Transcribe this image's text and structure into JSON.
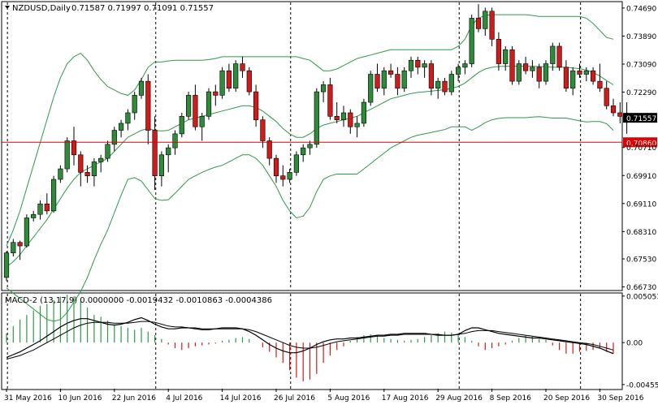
{
  "header": {
    "symbol": "NZDUSD,Daily",
    "ohlc": "0.71587 0.71997 0.71091 0.71557"
  },
  "indicator": {
    "label": "MACD-2 (13,17,9) 0.0000000 -0.0019432 -0.0010863 -0.0004386"
  },
  "colors": {
    "bull": "#2e8b3a",
    "bear": "#d11a1a",
    "band": "#2e9a4a",
    "grid": "#000000",
    "price_line": "#e00000",
    "current_price_bg": "#000000",
    "macd_pos": "#2e9a4a",
    "macd_neg": "#d11a1a"
  },
  "chart_data": [
    {
      "type": "candlestick",
      "yaxis_ticks": [
        "0.74690",
        "0.73890",
        "0.73090",
        "0.72290",
        "0.70710",
        "0.69910",
        "0.69110",
        "0.68310",
        "0.67530",
        "0.66730"
      ],
      "ylim": [
        0.6665,
        0.7485
      ],
      "current_price": "0.71557",
      "hline_price": "0.70860",
      "x_ticks": [
        "31 May 2016",
        "10 Jun 2016",
        "22 Jun 2016",
        "4 Jul 2016",
        "14 Jul 2016",
        "26 Jul 2016",
        "5 Aug 2016",
        "17 Aug 2016",
        "29 Aug 2016",
        "8 Sep 2016",
        "20 Sep 2016",
        "30 Sep 2016"
      ],
      "x_tick_index": [
        0,
        8,
        16,
        24,
        32,
        40,
        48,
        56,
        64,
        72,
        80,
        88
      ],
      "vlines_index": [
        1,
        23,
        43,
        68,
        86
      ],
      "candles": [
        [
          0.67,
          0.6775,
          0.669,
          0.677
        ],
        [
          0.677,
          0.681,
          0.676,
          0.68
        ],
        [
          0.68,
          0.6805,
          0.675,
          0.679
        ],
        [
          0.679,
          0.688,
          0.6785,
          0.687
        ],
        [
          0.687,
          0.689,
          0.686,
          0.688
        ],
        [
          0.688,
          0.692,
          0.6865,
          0.691
        ],
        [
          0.691,
          0.694,
          0.688,
          0.689
        ],
        [
          0.689,
          0.699,
          0.6885,
          0.698
        ],
        [
          0.698,
          0.702,
          0.697,
          0.701
        ],
        [
          0.701,
          0.71,
          0.7,
          0.709
        ],
        [
          0.709,
          0.713,
          0.702,
          0.705
        ],
        [
          0.705,
          0.706,
          0.696,
          0.7
        ],
        [
          0.7,
          0.702,
          0.697,
          0.699
        ],
        [
          0.699,
          0.704,
          0.696,
          0.703
        ],
        [
          0.703,
          0.705,
          0.7,
          0.704
        ],
        [
          0.704,
          0.709,
          0.703,
          0.708
        ],
        [
          0.708,
          0.713,
          0.706,
          0.712
        ],
        [
          0.712,
          0.715,
          0.71,
          0.714
        ],
        [
          0.714,
          0.718,
          0.712,
          0.717
        ],
        [
          0.717,
          0.723,
          0.715,
          0.722
        ],
        [
          0.722,
          0.727,
          0.721,
          0.726
        ],
        [
          0.726,
          0.728,
          0.708,
          0.712
        ],
        [
          0.712,
          0.716,
          0.695,
          0.699
        ],
        [
          0.699,
          0.706,
          0.696,
          0.705
        ],
        [
          0.705,
          0.708,
          0.7,
          0.707
        ],
        [
          0.707,
          0.712,
          0.705,
          0.711
        ],
        [
          0.711,
          0.717,
          0.71,
          0.716
        ],
        [
          0.716,
          0.723,
          0.715,
          0.722
        ],
        [
          0.722,
          0.725,
          0.712,
          0.713
        ],
        [
          0.713,
          0.717,
          0.709,
          0.716
        ],
        [
          0.716,
          0.724,
          0.715,
          0.723
        ],
        [
          0.723,
          0.725,
          0.719,
          0.722
        ],
        [
          0.722,
          0.73,
          0.721,
          0.729
        ],
        [
          0.729,
          0.731,
          0.723,
          0.724
        ],
        [
          0.724,
          0.732,
          0.723,
          0.731
        ],
        [
          0.731,
          0.733,
          0.727,
          0.729
        ],
        [
          0.729,
          0.73,
          0.722,
          0.723
        ],
        [
          0.723,
          0.725,
          0.713,
          0.715
        ],
        [
          0.715,
          0.716,
          0.707,
          0.709
        ],
        [
          0.709,
          0.71,
          0.702,
          0.704
        ],
        [
          0.704,
          0.705,
          0.697,
          0.699
        ],
        [
          0.699,
          0.702,
          0.696,
          0.698
        ],
        [
          0.698,
          0.701,
          0.697,
          0.7
        ],
        [
          0.7,
          0.706,
          0.699,
          0.705
        ],
        [
          0.705,
          0.708,
          0.703,
          0.707
        ],
        [
          0.707,
          0.709,
          0.705,
          0.708
        ],
        [
          0.708,
          0.724,
          0.707,
          0.723
        ],
        [
          0.723,
          0.726,
          0.72,
          0.725
        ],
        [
          0.725,
          0.727,
          0.715,
          0.716
        ],
        [
          0.716,
          0.72,
          0.714,
          0.715
        ],
        [
          0.715,
          0.719,
          0.713,
          0.717
        ],
        [
          0.717,
          0.718,
          0.711,
          0.713
        ],
        [
          0.713,
          0.716,
          0.71,
          0.714
        ],
        [
          0.714,
          0.721,
          0.713,
          0.72
        ],
        [
          0.72,
          0.729,
          0.719,
          0.728
        ],
        [
          0.728,
          0.731,
          0.723,
          0.724
        ],
        [
          0.724,
          0.73,
          0.722,
          0.729
        ],
        [
          0.729,
          0.731,
          0.727,
          0.728
        ],
        [
          0.728,
          0.73,
          0.722,
          0.724
        ],
        [
          0.724,
          0.73,
          0.723,
          0.729
        ],
        [
          0.729,
          0.733,
          0.727,
          0.732
        ],
        [
          0.732,
          0.733,
          0.728,
          0.73
        ],
        [
          0.73,
          0.732,
          0.727,
          0.731
        ],
        [
          0.731,
          0.732,
          0.722,
          0.724
        ],
        [
          0.724,
          0.727,
          0.721,
          0.726
        ],
        [
          0.726,
          0.727,
          0.722,
          0.723
        ],
        [
          0.723,
          0.729,
          0.722,
          0.728
        ],
        [
          0.728,
          0.731,
          0.726,
          0.73
        ],
        [
          0.73,
          0.732,
          0.728,
          0.731
        ],
        [
          0.731,
          0.745,
          0.73,
          0.744
        ],
        [
          0.744,
          0.748,
          0.74,
          0.741
        ],
        [
          0.741,
          0.747,
          0.739,
          0.746
        ],
        [
          0.746,
          0.747,
          0.736,
          0.738
        ],
        [
          0.738,
          0.74,
          0.729,
          0.731
        ],
        [
          0.731,
          0.736,
          0.729,
          0.735
        ],
        [
          0.735,
          0.736,
          0.725,
          0.726
        ],
        [
          0.726,
          0.732,
          0.725,
          0.731
        ],
        [
          0.731,
          0.733,
          0.728,
          0.729
        ],
        [
          0.729,
          0.732,
          0.727,
          0.73
        ],
        [
          0.73,
          0.731,
          0.724,
          0.726
        ],
        [
          0.726,
          0.732,
          0.725,
          0.731
        ],
        [
          0.731,
          0.737,
          0.729,
          0.736
        ],
        [
          0.736,
          0.737,
          0.729,
          0.73
        ],
        [
          0.73,
          0.732,
          0.723,
          0.724
        ],
        [
          0.724,
          0.73,
          0.722,
          0.729
        ],
        [
          0.729,
          0.731,
          0.727,
          0.728
        ],
        [
          0.728,
          0.73,
          0.726,
          0.729
        ],
        [
          0.729,
          0.73,
          0.725,
          0.726
        ],
        [
          0.726,
          0.731,
          0.723,
          0.724
        ],
        [
          0.724,
          0.726,
          0.718,
          0.719
        ],
        [
          0.719,
          0.721,
          0.716,
          0.717
        ],
        [
          0.717,
          0.72,
          0.714,
          0.716
        ],
        [
          0.716,
          0.72,
          0.711,
          0.7156
        ]
      ],
      "bb_upper": [
        0.679,
        0.6835,
        0.689,
        0.6955,
        0.702,
        0.7085,
        0.715,
        0.7215,
        0.727,
        0.731,
        0.733,
        0.734,
        0.732,
        0.729,
        0.7265,
        0.7245,
        0.7235,
        0.7225,
        0.722,
        0.7235,
        0.7265,
        0.73,
        0.7315,
        0.7315,
        0.7318,
        0.732,
        0.732,
        0.732,
        0.732,
        0.732,
        0.7322,
        0.7325,
        0.733,
        0.733,
        0.733,
        0.733,
        0.733,
        0.733,
        0.733,
        0.733,
        0.733,
        0.733,
        0.733,
        0.733,
        0.7325,
        0.732,
        0.7305,
        0.729,
        0.729,
        0.7295,
        0.7305,
        0.7315,
        0.7325,
        0.733,
        0.7335,
        0.734,
        0.7345,
        0.735,
        0.735,
        0.735,
        0.735,
        0.735,
        0.735,
        0.735,
        0.735,
        0.735,
        0.735,
        0.736,
        0.738,
        0.742,
        0.744,
        0.7448,
        0.745,
        0.745,
        0.745,
        0.745,
        0.745,
        0.745,
        0.7448,
        0.7445,
        0.7445,
        0.7445,
        0.7445,
        0.7445,
        0.7445,
        0.7445,
        0.744,
        0.7425,
        0.7405,
        0.7385,
        0.738
      ],
      "bb_middle": [
        0.673,
        0.6745,
        0.6765,
        0.679,
        0.6815,
        0.684,
        0.6865,
        0.6895,
        0.6925,
        0.6955,
        0.698,
        0.7,
        0.701,
        0.702,
        0.703,
        0.704,
        0.706,
        0.708,
        0.71,
        0.711,
        0.712,
        0.7125,
        0.712,
        0.7118,
        0.712,
        0.713,
        0.714,
        0.715,
        0.7155,
        0.716,
        0.7165,
        0.717,
        0.7175,
        0.718,
        0.7185,
        0.719,
        0.719,
        0.7185,
        0.7175,
        0.716,
        0.7145,
        0.7125,
        0.711,
        0.71,
        0.71,
        0.711,
        0.7125,
        0.7135,
        0.714,
        0.7145,
        0.715,
        0.7155,
        0.716,
        0.717,
        0.718,
        0.719,
        0.72,
        0.721,
        0.7215,
        0.722,
        0.7225,
        0.7228,
        0.723,
        0.7232,
        0.7234,
        0.7236,
        0.724,
        0.7245,
        0.7255,
        0.727,
        0.7285,
        0.7295,
        0.73,
        0.7302,
        0.7303,
        0.7303,
        0.7303,
        0.7303,
        0.7303,
        0.7302,
        0.7301,
        0.73,
        0.73,
        0.73,
        0.7298,
        0.7296,
        0.7292,
        0.7285,
        0.7275,
        0.7262,
        0.725
      ],
      "bb_lower": [
        0.667,
        0.6655,
        0.664,
        0.6625,
        0.661,
        0.6595,
        0.658,
        0.6575,
        0.658,
        0.66,
        0.663,
        0.666,
        0.67,
        0.675,
        0.6795,
        0.6835,
        0.6885,
        0.6935,
        0.698,
        0.6985,
        0.6975,
        0.695,
        0.6925,
        0.692,
        0.6922,
        0.694,
        0.696,
        0.698,
        0.699,
        0.7,
        0.7008,
        0.7015,
        0.702,
        0.703,
        0.704,
        0.705,
        0.705,
        0.704,
        0.702,
        0.699,
        0.696,
        0.692,
        0.689,
        0.687,
        0.6875,
        0.69,
        0.6945,
        0.698,
        0.699,
        0.6995,
        0.6995,
        0.6995,
        0.6995,
        0.701,
        0.7025,
        0.704,
        0.7055,
        0.707,
        0.708,
        0.709,
        0.71,
        0.7106,
        0.711,
        0.7114,
        0.7118,
        0.7122,
        0.713,
        0.713,
        0.713,
        0.712,
        0.713,
        0.7142,
        0.715,
        0.7154,
        0.7156,
        0.7156,
        0.7156,
        0.7156,
        0.7158,
        0.7159,
        0.7157,
        0.7155,
        0.7155,
        0.7155,
        0.7151,
        0.7147,
        0.7144,
        0.7145,
        0.7145,
        0.7139,
        0.712
      ]
    },
    {
      "type": "macd",
      "yaxis_ticks": [
        "0.005053",
        "0.00",
        "-0.004551"
      ],
      "ylim": [
        -0.005,
        0.0053
      ],
      "histogram": [
        0.001,
        0.0018,
        0.0025,
        0.003,
        0.0035,
        0.004,
        0.0042,
        0.0046,
        0.005,
        0.0052,
        0.005,
        0.0045,
        0.0038,
        0.003,
        0.0028,
        0.0024,
        0.002,
        0.0018,
        0.0016,
        0.0014,
        0.0016,
        0.0012,
        0.0008,
        0.0004,
        -0.0002,
        -0.0006,
        -0.0008,
        -0.0006,
        -0.0004,
        -0.0003,
        -0.0002,
        -0.0001,
        0.0002,
        0.0003,
        0.0005,
        0.0006,
        0.0004,
        0.0,
        -0.0005,
        -0.001,
        -0.0016,
        -0.0022,
        -0.003,
        -0.0038,
        -0.0042,
        -0.004,
        -0.0034,
        -0.0022,
        -0.0014,
        -0.0008,
        -0.0004,
        0.0002,
        0.0006,
        0.0008,
        0.0009,
        0.0008,
        0.0005,
        0.0004,
        0.0003,
        0.0002,
        0.0003,
        0.0004,
        0.0006,
        0.0008,
        0.001,
        0.0012,
        0.0011,
        0.001,
        0.0006,
        0.0002,
        -0.0004,
        -0.0008,
        -0.0006,
        -0.0004,
        -0.0002,
        0.0002,
        0.0005,
        0.0008,
        0.0007,
        0.0004,
        0.0003,
        -0.0003,
        -0.0008,
        -0.0012,
        -0.0012,
        -0.001,
        -0.0009,
        -0.0008,
        -0.0006,
        -0.001,
        -0.0012
      ],
      "macd_line": [
        -0.0016,
        -0.0013,
        -0.001,
        -0.0006,
        -0.0002,
        0.0002,
        0.0007,
        0.0012,
        0.0017,
        0.0021,
        0.0024,
        0.0026,
        0.0026,
        0.0024,
        0.0022,
        0.002,
        0.0019,
        0.002,
        0.0022,
        0.0025,
        0.0027,
        0.0024,
        0.002,
        0.0017,
        0.0015,
        0.0015,
        0.0016,
        0.0016,
        0.0015,
        0.0014,
        0.0014,
        0.0015,
        0.0016,
        0.0016,
        0.0016,
        0.0015,
        0.0012,
        0.0008,
        0.0003,
        -0.0002,
        -0.0006,
        -0.0009,
        -0.0011,
        -0.0011,
        -0.0009,
        -0.0006,
        -0.0002,
        0.0001,
        0.0003,
        0.0004,
        0.0004,
        0.0005,
        0.0005,
        0.0006,
        0.0007,
        0.0008,
        0.0008,
        0.0009,
        0.0009,
        0.001,
        0.001,
        0.001,
        0.001,
        0.0009,
        0.0008,
        0.0008,
        0.0008,
        0.0009,
        0.0013,
        0.0016,
        0.0016,
        0.0014,
        0.0012,
        0.001,
        0.0009,
        0.0008,
        0.0007,
        0.0006,
        0.0005,
        0.0005,
        0.0004,
        0.0003,
        0.0002,
        0.0001,
        0.0,
        -0.0001,
        -0.0002,
        -0.0004,
        -0.0006,
        -0.0009,
        -0.0012
      ],
      "signal_line": [
        -0.0018,
        -0.0016,
        -0.0014,
        -0.0011,
        -0.0008,
        -0.0004,
        0.0,
        0.0004,
        0.0008,
        0.0012,
        0.0016,
        0.0019,
        0.0021,
        0.0022,
        0.0022,
        0.0022,
        0.0021,
        0.0021,
        0.0021,
        0.0022,
        0.0023,
        0.0023,
        0.0022,
        0.002,
        0.0018,
        0.0017,
        0.0017,
        0.0016,
        0.0016,
        0.0015,
        0.0015,
        0.0015,
        0.0015,
        0.0015,
        0.0015,
        0.0015,
        0.0014,
        0.0012,
        0.0009,
        0.0006,
        0.0003,
        0.0,
        -0.0003,
        -0.0005,
        -0.0006,
        -0.0006,
        -0.0005,
        -0.0003,
        -0.0001,
        0.0001,
        0.0002,
        0.0003,
        0.0004,
        0.0005,
        0.0006,
        0.0007,
        0.0007,
        0.0008,
        0.0008,
        0.0009,
        0.0009,
        0.0009,
        0.0009,
        0.0009,
        0.0009,
        0.0008,
        0.0008,
        0.0009,
        0.001,
        0.0012,
        0.0013,
        0.0013,
        0.0013,
        0.0012,
        0.0011,
        0.001,
        0.0009,
        0.0008,
        0.0007,
        0.0006,
        0.0005,
        0.0004,
        0.0003,
        0.0002,
        0.0001,
        0.0,
        -0.0001,
        -0.0002,
        -0.0004,
        -0.0006,
        -0.0008
      ]
    }
  ]
}
